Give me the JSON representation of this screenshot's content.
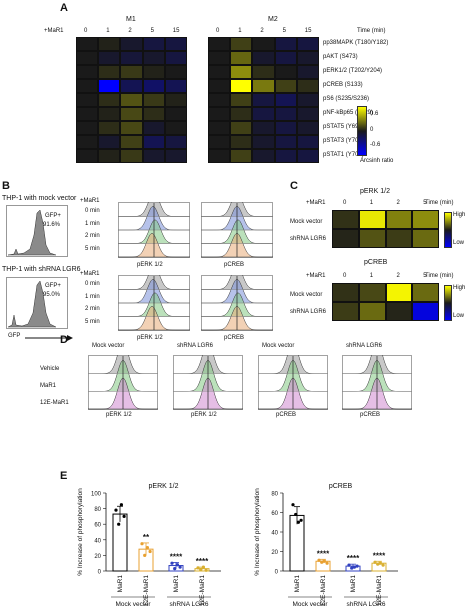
{
  "panel_a": {
    "label": "A",
    "group_m1": "M1",
    "group_m2": "M2",
    "row_prefix": "+MaR1",
    "timepoints": [
      "0",
      "1",
      "2",
      "5",
      "15"
    ],
    "time_unit": "Time (min)",
    "proteins": [
      "pp38MAPK (T180/Y182)",
      "pAKT (S473)",
      "pERK1/2 (T202/Y204)",
      "pCREB (S133)",
      "pS6 (S235/S236)",
      "pNF-kBp65 (S529)",
      "pSTAT5 (Y694)",
      "pSTAT3 (Y705)",
      "pSTAT1 (Y701)"
    ],
    "colorbar_ticks": [
      "0.6",
      "0",
      "-0.6"
    ],
    "colorbar_label": "Arcsinh ratio"
  },
  "panel_b": {
    "label": "B",
    "title_mock": "THP-1 with mock vector",
    "title_sh": "THP-1 with shRNA LGR6",
    "gfp_mock": "GFP+",
    "gfp_mock_pct": "91.6%",
    "gfp_sh": "GFP+",
    "gfp_sh_pct": "95.0%",
    "gfp_axis": "GFP",
    "row_prefix": "+MaR1",
    "rows": [
      "0 min",
      "1 min",
      "2 min",
      "5 min"
    ],
    "col1": "pERK 1/2",
    "col2": "pCREB"
  },
  "panel_c": {
    "label": "C",
    "title1": "pERK 1/2",
    "title2": "pCREB",
    "row_prefix": "+MaR1",
    "timepoints": [
      "0",
      "1",
      "2",
      "5"
    ],
    "time_unit": "Time (min)",
    "rows": [
      "Mock vector",
      "shRNA LGR6"
    ],
    "high": "High",
    "low": "Low"
  },
  "panel_d": {
    "label": "D",
    "col_titles": [
      "Mock vector",
      "shRNA LGR6",
      "Mock vector",
      "shRNA LGR6"
    ],
    "rows": [
      "Vehicle",
      "MaR1",
      "12E-MaR1"
    ],
    "col_labels": [
      "pERK 1/2",
      "pERK 1/2",
      "pCREB",
      "pCREB"
    ]
  },
  "panel_e": {
    "label": "E",
    "ylabel": "% Increase of phosphorylation",
    "group_labels": [
      "Mock vector",
      "shRNA LGR6"
    ],
    "sig": [
      "**",
      "****",
      "****",
      "****",
      "****",
      "****"
    ]
  },
  "chart_data": [
    {
      "type": "heatmap",
      "title": "M1",
      "xlabel": "Time (min)",
      "x": [
        "0",
        "1",
        "2",
        "5",
        "15"
      ],
      "y": [
        "pp38MAPK (T180/Y182)",
        "pAKT (S473)",
        "pERK1/2 (T202/Y204)",
        "pCREB (S133)",
        "pS6 (S235/S236)",
        "pNF-kBp65 (S529)",
        "pSTAT5 (Y694)",
        "pSTAT3 (Y705)",
        "pSTAT1 (Y701)"
      ],
      "values": [
        [
          0,
          0.02,
          -0.05,
          -0.1,
          -0.1
        ],
        [
          0,
          -0.05,
          -0.08,
          -0.05,
          -0.1
        ],
        [
          0,
          0.05,
          0.08,
          0.02,
          0.0
        ],
        [
          0,
          -0.6,
          -0.15,
          -0.2,
          -0.15
        ],
        [
          0,
          0.05,
          0.15,
          0.08,
          0.02
        ],
        [
          0,
          0.02,
          0.12,
          0.05,
          0.0
        ],
        [
          0,
          0.05,
          0.12,
          -0.05,
          0.0
        ],
        [
          0,
          -0.05,
          0.1,
          -0.15,
          -0.1
        ],
        [
          0,
          0.02,
          0.08,
          -0.05,
          -0.05
        ]
      ],
      "colorbar": {
        "min": -0.6,
        "max": 0.6,
        "label": "Arcsinh ratio"
      }
    },
    {
      "type": "heatmap",
      "title": "M2",
      "xlabel": "Time (min)",
      "x": [
        "0",
        "1",
        "2",
        "5",
        "15"
      ],
      "y": [
        "pp38MAPK (T180/Y182)",
        "pAKT (S473)",
        "pERK1/2 (T202/Y204)",
        "pCREB (S133)",
        "pS6 (S235/S236)",
        "pNF-kBp65 (S529)",
        "pSTAT5 (Y694)",
        "pSTAT3 (Y705)",
        "pSTAT1 (Y701)"
      ],
      "values": [
        [
          0,
          0.1,
          0.0,
          -0.1,
          -0.1
        ],
        [
          0,
          0.2,
          -0.05,
          -0.1,
          -0.05
        ],
        [
          0,
          0.3,
          0.05,
          0.0,
          -0.05
        ],
        [
          0,
          0.75,
          0.25,
          0.1,
          0.05
        ],
        [
          0,
          0.1,
          -0.1,
          -0.15,
          -0.05
        ],
        [
          0,
          0.05,
          -0.1,
          -0.1,
          -0.05
        ],
        [
          0,
          0.1,
          -0.05,
          -0.1,
          -0.05
        ],
        [
          0,
          0.05,
          -0.05,
          -0.1,
          -0.1
        ],
        [
          0,
          0.1,
          -0.05,
          -0.1,
          -0.1
        ]
      ],
      "colorbar": {
        "min": -0.6,
        "max": 0.6,
        "label": "Arcsinh ratio"
      }
    },
    {
      "type": "heatmap",
      "title": "pERK 1/2",
      "xlabel": "Time (min)",
      "x": [
        "0",
        "1",
        "2",
        "5"
      ],
      "y": [
        "Mock vector",
        "shRNA LGR6"
      ],
      "values": [
        [
          0.1,
          0.9,
          0.45,
          0.5
        ],
        [
          0.05,
          0.25,
          0.15,
          0.35
        ]
      ],
      "colorbar": {
        "high": "High",
        "low": "Low"
      }
    },
    {
      "type": "heatmap",
      "title": "pCREB",
      "x": [
        "0",
        "1",
        "2",
        "5"
      ],
      "y": [
        "Mock vector",
        "shRNA LGR6"
      ],
      "values": [
        [
          0.1,
          0.2,
          0.95,
          0.35
        ],
        [
          0.15,
          0.35,
          0.05,
          -0.85
        ]
      ],
      "colorbar": {
        "high": "High",
        "low": "Low"
      }
    },
    {
      "type": "bar",
      "title": "pERK 1/2",
      "ylabel": "% Increase of phosphorylation",
      "categories": [
        "MaR1",
        "12E-MaR1",
        "MaR1",
        "12E-MaR1"
      ],
      "groups": [
        "Mock vector",
        "Mock vector",
        "shRNA LGR6",
        "shRNA LGR6"
      ],
      "values": [
        73,
        28,
        7,
        3
      ],
      "errors": [
        10,
        8,
        4,
        2
      ],
      "points": [
        [
          78,
          60,
          85,
          70
        ],
        [
          35,
          20,
          30,
          25
        ],
        [
          10,
          3,
          8,
          5
        ],
        [
          4,
          2,
          5,
          1
        ]
      ],
      "colors": [
        "#000000",
        "#e8a030",
        "#3040c0",
        "#d9b030"
      ],
      "sig": [
        "",
        "**",
        "****",
        "****"
      ],
      "ylim": [
        0,
        100
      ],
      "yticks": [
        0,
        20,
        40,
        60,
        80,
        100
      ]
    },
    {
      "type": "bar",
      "title": "pCREB",
      "ylabel": "% Increase of phosphorylation",
      "categories": [
        "MaR1",
        "12E-MaR1",
        "MaR1",
        "12E-MaR1"
      ],
      "groups": [
        "Mock vector",
        "Mock vector",
        "shRNA LGR6",
        "shRNA LGR6"
      ],
      "values": [
        57,
        10,
        5,
        8
      ],
      "errors": [
        9,
        2,
        2,
        2
      ],
      "points": [
        [
          68,
          58,
          50,
          52
        ],
        [
          11,
          9,
          10,
          8
        ],
        [
          6,
          3,
          4,
          5
        ],
        [
          9,
          7,
          8,
          6
        ]
      ],
      "colors": [
        "#000000",
        "#e8a030",
        "#3040c0",
        "#d9b030"
      ],
      "sig": [
        "",
        "****",
        "****",
        "****"
      ],
      "ylim": [
        0,
        80
      ],
      "yticks": [
        0,
        20,
        40,
        60,
        80
      ]
    }
  ]
}
